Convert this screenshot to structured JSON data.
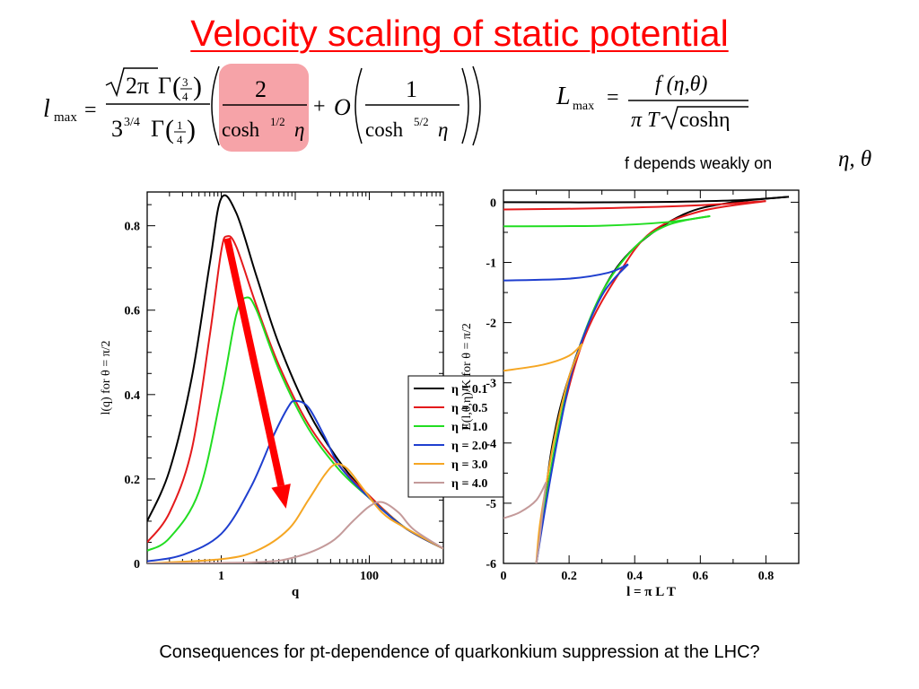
{
  "slide": {
    "title": "Velocity scaling of static potential",
    "note_text": "f depends weakly on",
    "note_vars": "η, θ",
    "footer": "Consequences for pt-dependence of quarkonkium suppression at the LHC?"
  },
  "formulas": {
    "lmax": {
      "lhs_symbol": "l",
      "lhs_subscript": "max",
      "equals": "=",
      "num_sqrt": "2π",
      "gamma": "Γ",
      "num_gamma_frac_num": "3",
      "num_gamma_frac_den": "4",
      "den_base": "3",
      "den_exp": "3/4",
      "den_gamma_frac_num": "1",
      "den_gamma_frac_den": "4",
      "highlight_num": "2",
      "highlight_den_func": "cosh",
      "highlight_den_exp": "1/2",
      "highlight_den_var": "η",
      "plus": "+",
      "order_symbol": "O",
      "order_num": "1",
      "order_den_func": "cosh",
      "order_den_exp": "5/2",
      "order_den_var": "η",
      "highlight_color": "#f6a3a8"
    },
    "Lmax": {
      "lhs_symbol": "L",
      "lhs_subscript": "max",
      "equals": "=",
      "num": "f (η,θ)",
      "den_pre": "π T",
      "den_sqrt": "coshη"
    }
  },
  "chart_data": [
    {
      "type": "line",
      "xscale": "log",
      "xlabel": "q",
      "ylabel": "l(q) for θ = π/2",
      "xlim": [
        0.1,
        1000
      ],
      "ylim": [
        0,
        0.88
      ],
      "xticks": [
        1,
        100
      ],
      "xtick_labels": [
        "1",
        "100"
      ],
      "yticks": [
        0,
        0.2,
        0.4,
        0.6,
        0.8
      ],
      "ytick_labels": [
        "0",
        "0.2",
        "0.4",
        "0.6",
        "0.8"
      ],
      "grid": false,
      "series": [
        {
          "name": "η = 0.1",
          "color": "#000000",
          "x": [
            0.1,
            0.2,
            0.4,
            0.7,
            1.0,
            1.6,
            3,
            6,
            15,
            40,
            100,
            300,
            1000
          ],
          "y": [
            0.1,
            0.22,
            0.44,
            0.71,
            0.865,
            0.83,
            0.68,
            0.52,
            0.36,
            0.24,
            0.16,
            0.085,
            0.035
          ]
        },
        {
          "name": "η = 0.5",
          "color": "#e41a1c",
          "x": [
            0.1,
            0.2,
            0.4,
            0.7,
            1.0,
            1.2,
            1.6,
            3,
            6,
            15,
            40,
            100,
            300,
            1000
          ],
          "y": [
            0.05,
            0.12,
            0.27,
            0.54,
            0.74,
            0.775,
            0.75,
            0.61,
            0.47,
            0.33,
            0.23,
            0.16,
            0.085,
            0.035
          ]
        },
        {
          "name": "η = 1.0",
          "color": "#22dd22",
          "x": [
            0.1,
            0.2,
            0.5,
            1.0,
            1.6,
            2.2,
            3,
            6,
            15,
            40,
            100,
            300,
            1000
          ],
          "y": [
            0.03,
            0.06,
            0.17,
            0.4,
            0.59,
            0.63,
            0.6,
            0.46,
            0.32,
            0.22,
            0.155,
            0.085,
            0.035
          ]
        },
        {
          "name": "η = 2.0",
          "color": "#1f3fcf",
          "x": [
            0.1,
            0.3,
            1.0,
            2.5,
            5,
            8,
            10,
            15,
            25,
            40,
            100,
            300,
            1000
          ],
          "y": [
            0.005,
            0.02,
            0.07,
            0.18,
            0.3,
            0.37,
            0.385,
            0.37,
            0.3,
            0.23,
            0.155,
            0.085,
            0.035
          ]
        },
        {
          "name": "η = 3.0",
          "color": "#f5a623",
          "x": [
            0.1,
            1.0,
            3,
            8,
            15,
            25,
            35,
            50,
            80,
            150,
            300,
            1000
          ],
          "y": [
            0.0,
            0.01,
            0.03,
            0.08,
            0.15,
            0.21,
            0.235,
            0.225,
            0.18,
            0.12,
            0.085,
            0.035
          ]
        },
        {
          "name": "η = 4.0",
          "color": "#c49a9a",
          "x": [
            0.1,
            3,
            10,
            30,
            60,
            100,
            150,
            250,
            400,
            1000
          ],
          "y": [
            0.0,
            0.003,
            0.015,
            0.05,
            0.1,
            0.135,
            0.145,
            0.12,
            0.08,
            0.035
          ]
        }
      ],
      "annotation": {
        "type": "arrow",
        "color": "#ff0000",
        "from": {
          "x": 1.2,
          "y": 0.77
        },
        "to": {
          "x": 7.5,
          "y": 0.13
        }
      },
      "legend": {
        "placement": "right, over plot"
      }
    },
    {
      "type": "line",
      "xlabel": "l = π L T",
      "ylabel": "E(l,θ,η)/K for θ = π/2",
      "xlim": [
        0,
        0.9
      ],
      "ylim": [
        -6,
        0.2
      ],
      "xticks": [
        0,
        0.2,
        0.4,
        0.6,
        0.8
      ],
      "xtick_labels": [
        "0",
        "0.2",
        "0.4",
        "0.6",
        "0.8"
      ],
      "yticks": [
        -6,
        -5,
        -4,
        -3,
        -2,
        -1,
        0
      ],
      "ytick_labels": [
        "-6",
        "-5",
        "-4",
        "-3",
        "-2",
        "-1",
        "0"
      ],
      "grid": false,
      "series": [
        {
          "name": "η = 0.1",
          "color": "#000000",
          "segments": [
            {
              "x": [
                0,
                0.4,
                0.7,
                0.87
              ],
              "y": [
                0.0,
                0.0,
                0.03,
                0.09
              ]
            },
            {
              "x": [
                0.87,
                0.7,
                0.55,
                0.4,
                0.3,
                0.2,
                0.15,
                0.12,
                0.1
              ],
              "y": [
                0.09,
                0.0,
                -0.2,
                -0.75,
                -1.5,
                -2.9,
                -4.0,
                -5.2,
                -6.0
              ]
            }
          ]
        },
        {
          "name": "η = 0.5",
          "color": "#e41a1c",
          "segments": [
            {
              "x": [
                0,
                0.3,
                0.6,
                0.8
              ],
              "y": [
                -0.12,
                -0.1,
                -0.05,
                0.02
              ]
            },
            {
              "x": [
                0.8,
                0.6,
                0.45,
                0.35,
                0.25,
                0.18,
                0.13,
                0.1
              ],
              "y": [
                0.02,
                -0.15,
                -0.5,
                -1.2,
                -2.2,
                -3.5,
                -4.9,
                -6.0
              ]
            }
          ]
        },
        {
          "name": "η = 1.0",
          "color": "#22dd22",
          "segments": [
            {
              "x": [
                0,
                0.3,
                0.5,
                0.63
              ],
              "y": [
                -0.4,
                -0.39,
                -0.33,
                -0.23
              ]
            },
            {
              "x": [
                0.63,
                0.5,
                0.4,
                0.3,
                0.22,
                0.17,
                0.13,
                0.1
              ],
              "y": [
                -0.23,
                -0.38,
                -0.75,
                -1.5,
                -2.6,
                -3.7,
                -4.9,
                -6.0
              ]
            }
          ]
        },
        {
          "name": "η = 2.0",
          "color": "#1f3fcf",
          "segments": [
            {
              "x": [
                0,
                0.2,
                0.32,
                0.38
              ],
              "y": [
                -1.3,
                -1.27,
                -1.17,
                -1.03
              ]
            },
            {
              "x": [
                0.38,
                0.3,
                0.22,
                0.17,
                0.13,
                0.1
              ],
              "y": [
                -1.03,
                -1.55,
                -2.6,
                -3.8,
                -5.0,
                -6.0
              ]
            }
          ]
        },
        {
          "name": "η = 3.0",
          "color": "#f5a623",
          "segments": [
            {
              "x": [
                0,
                0.12,
                0.2,
                0.24
              ],
              "y": [
                -2.8,
                -2.7,
                -2.55,
                -2.35
              ]
            },
            {
              "x": [
                0.24,
                0.2,
                0.16,
                0.13,
                0.11,
                0.1
              ],
              "y": [
                -2.35,
                -2.9,
                -3.8,
                -4.7,
                -5.4,
                -6.0
              ]
            }
          ]
        },
        {
          "name": "η = 4.0",
          "color": "#c49a9a",
          "segments": [
            {
              "x": [
                0,
                0.05,
                0.1,
                0.13
              ],
              "y": [
                -5.25,
                -5.15,
                -4.95,
                -4.65
              ]
            },
            {
              "x": [
                0.13,
                0.12,
                0.11,
                0.1
              ],
              "y": [
                -4.65,
                -5.1,
                -5.6,
                -6.0
              ]
            }
          ]
        }
      ]
    }
  ]
}
